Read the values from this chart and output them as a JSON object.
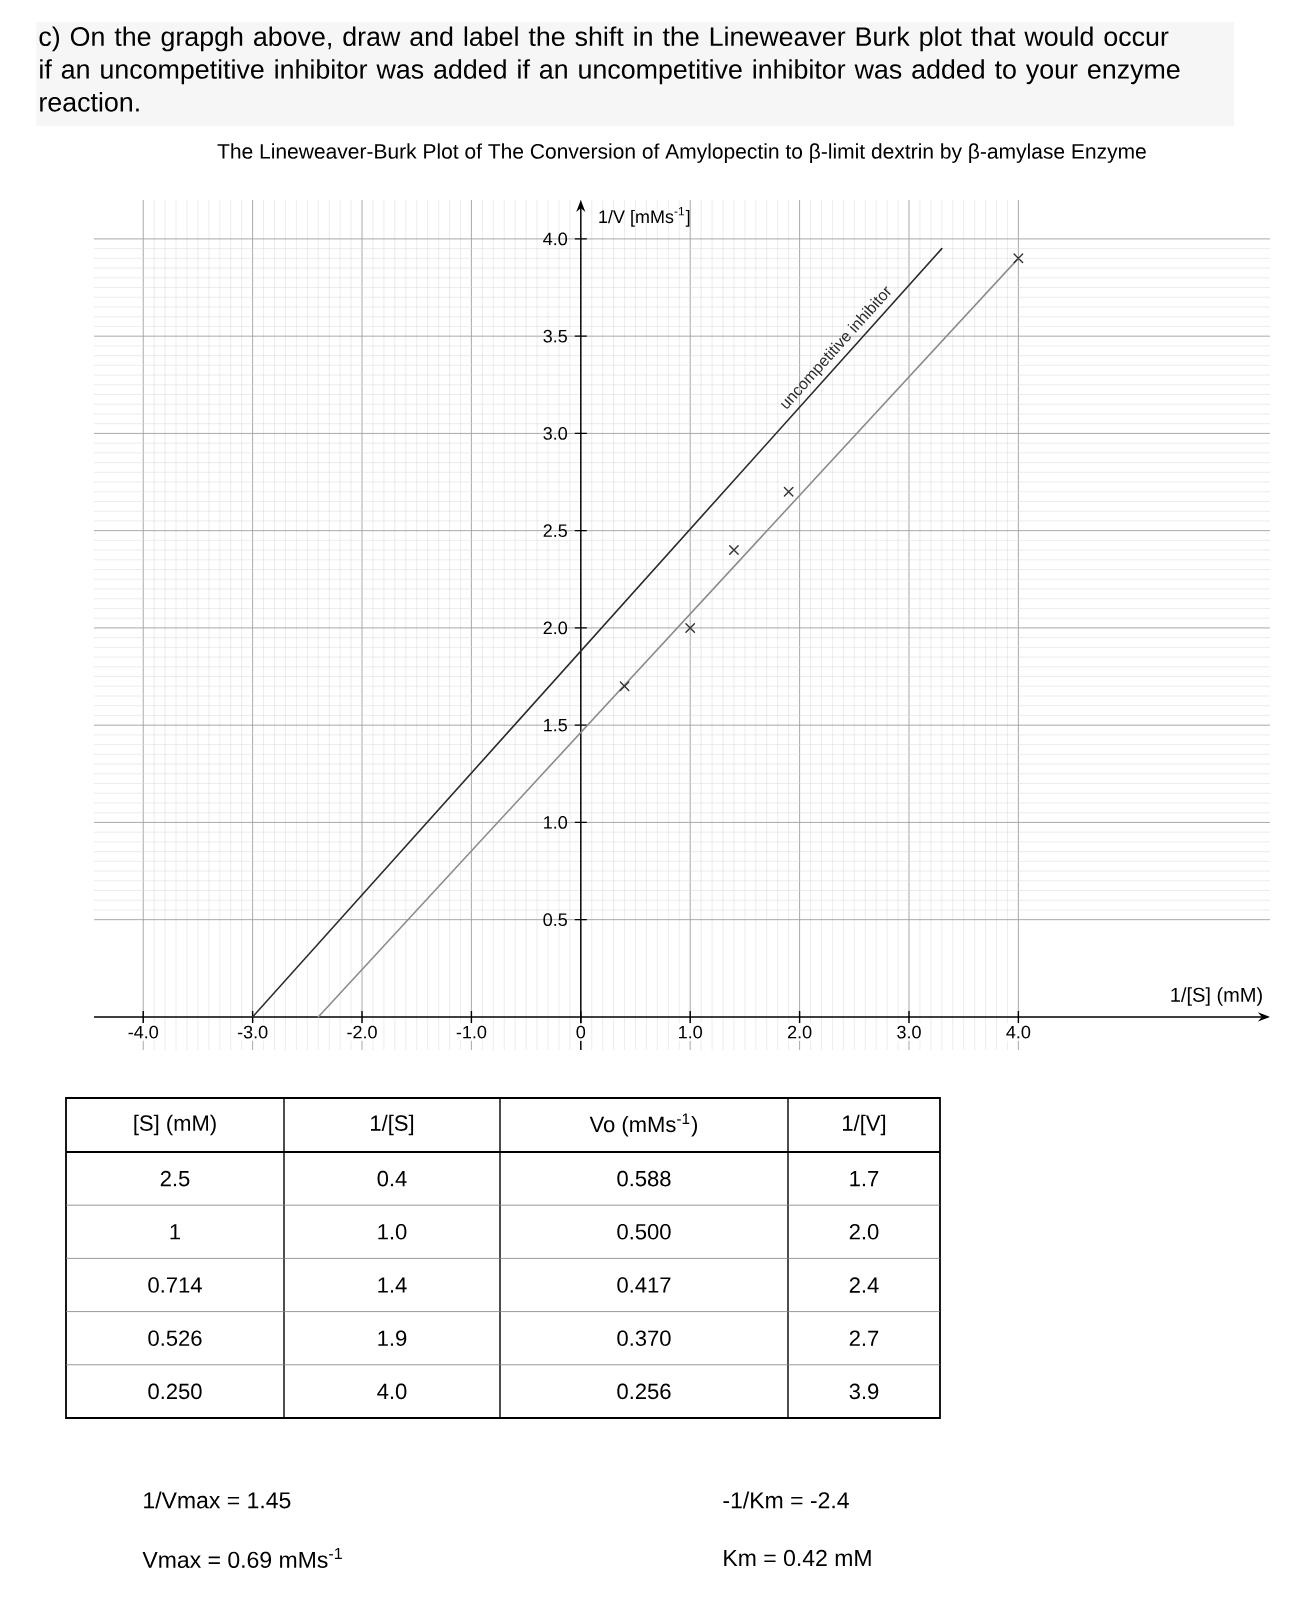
{
  "chart_data": [
    {
      "type": "other",
      "annotations": [
        "c) On the grapgh above, draw and label the shift in the Lineweaver Burk plot that would occur if an uncompetitive inhibitor was added if an uncompetitive inhibitor was added to your enzyme reaction."
      ]
    },
    {
      "type": "scatter",
      "title": "The Lineweaver-Burk Plot of The Conversion of Amylopectin to β-limit dextrin by β-amylase Enzyme",
      "xlabel": "1/[S] (mM)",
      "ylabel": "1/V [mMs$^{-1}$]",
      "xlim": [
        -4.45,
        6.3
      ],
      "ylim": [
        -0.17,
        4.2
      ],
      "xticks": [
        {
          "value": -4,
          "label": "-4.0"
        },
        {
          "value": -3,
          "label": "-3.0"
        },
        {
          "value": -2,
          "label": "-2.0"
        },
        {
          "value": -1,
          "label": "-1.0"
        },
        0,
        {
          "value": 1,
          "label": "1.0"
        },
        {
          "value": 2,
          "label": "2.0"
        },
        {
          "value": 3,
          "label": "3.0"
        },
        {
          "value": 4,
          "label": "4.0"
        }
      ],
      "yticks": [
        0.5,
        {
          "value": 1,
          "label": "1.0"
        },
        1.5,
        {
          "value": 2,
          "label": "2.0"
        },
        2.5,
        {
          "value": 3,
          "label": "3.0"
        },
        3.5,
        {
          "value": 4,
          "label": "4.0"
        }
      ],
      "grid": true,
      "series": [
        {
          "type": "scatter",
          "color": "#333333",
          "marker": "cross",
          "x": [
            0.4,
            1.0,
            1.4,
            1.9,
            4.0
          ],
          "values": [
            1.7,
            2.0,
            2.4,
            2.7,
            3.9
          ]
        },
        {
          "type": "line",
          "color": "#8c8c8c",
          "x": [
            -2.4,
            4.0
          ],
          "values": [
            0,
            3.9
          ]
        },
        {
          "type": "line",
          "name": "uncompetitive inhibitor",
          "color": "#2b2b2b",
          "x": [
            -3.0,
            3.3
          ],
          "values": [
            0,
            3.95
          ]
        }
      ]
    },
    {
      "type": "other",
      "annotations": [
        "[S] (mM)",
        "1/[S]",
        "Vo (mMs$^{-1}$)",
        "1/[V]",
        "2.5",
        "0.4",
        "0.588",
        "1.7",
        "1",
        "1.0",
        "0.500",
        "2.0",
        "0.714",
        "1.4",
        "0.417",
        "2.4",
        "0.526",
        "1.9",
        "0.370",
        "2.7",
        "0.250",
        "4.0",
        "0.256",
        "3.9"
      ]
    },
    {
      "type": "other",
      "annotations": [
        "1/Vmax = 1.45",
        "-1/Km = -2.4",
        "Vmax = 0.69 mMs$^{-1}$",
        "Km = 0.42 mM"
      ]
    }
  ]
}
